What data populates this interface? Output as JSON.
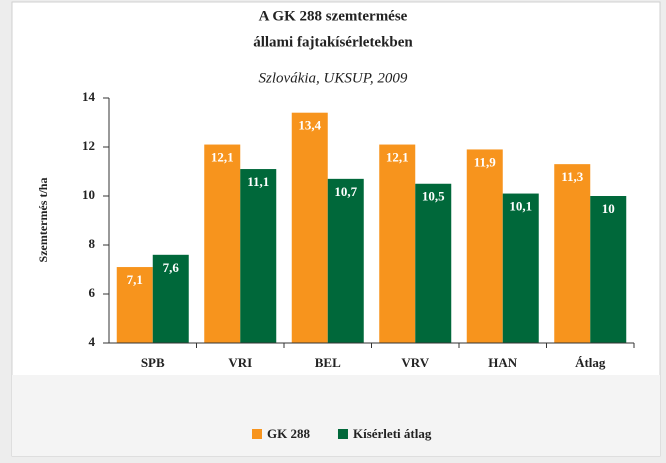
{
  "chart_data": {
    "type": "bar",
    "title": [
      "A GK 288 szemtermése",
      "állami fajtakísérletekben"
    ],
    "subtitle": "Szlovákia, UKSUP, 2009",
    "y_label": "Szemtermés t/ha",
    "categories": [
      "SPB",
      "VRI",
      "BEL",
      "VRV",
      "HAN",
      "Átlag"
    ],
    "series": [
      {
        "name": "GK 288",
        "color": "#f7941d",
        "values": [
          7.1,
          12.1,
          13.4,
          12.1,
          11.9,
          11.3
        ],
        "value_labels": [
          "7,1",
          "12,1",
          "13,4",
          "12,1",
          "11,9",
          "11,3"
        ]
      },
      {
        "name": "Kísérleti átlag",
        "color": "#00683a",
        "values": [
          7.6,
          11.1,
          10.7,
          10.5,
          10.1,
          10
        ],
        "value_labels": [
          "7,6",
          "11,1",
          "10,7",
          "10,5",
          "10,1",
          "10"
        ]
      }
    ],
    "ylim": [
      4,
      14
    ],
    "yticks": [
      4,
      6,
      8,
      10,
      12,
      14
    ],
    "grid": false,
    "legend": "bottom"
  }
}
